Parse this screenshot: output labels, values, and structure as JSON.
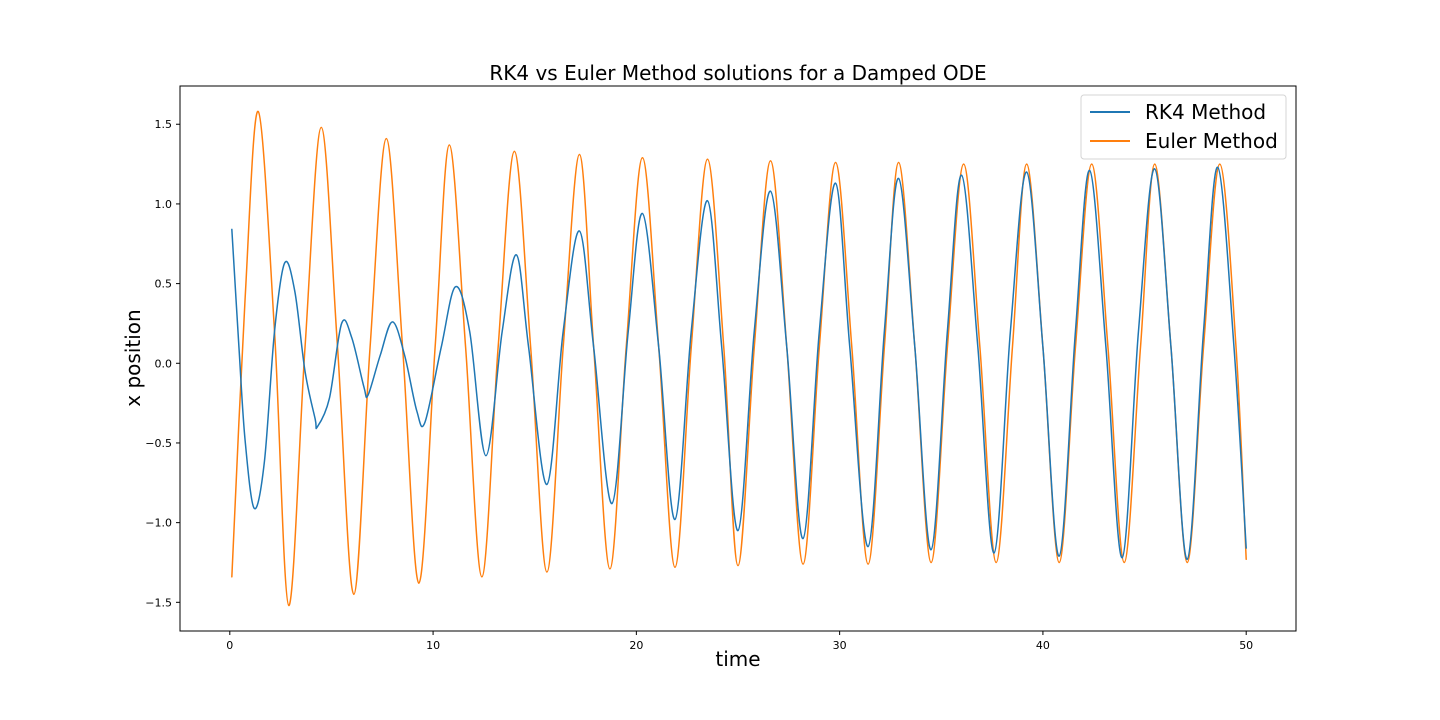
{
  "chart_data": {
    "type": "line",
    "title": "RK4 vs Euler Method solutions for a Damped ODE",
    "xlabel": "time",
    "ylabel": "x position",
    "xlim": [
      -2.45,
      52.45
    ],
    "ylim": [
      -1.68,
      1.74
    ],
    "xticks": [
      0,
      10,
      20,
      30,
      40,
      50
    ],
    "yticks": [
      -1.5,
      -1.0,
      -0.5,
      0.0,
      0.5,
      1.0,
      1.5
    ],
    "xtick_labels": [
      "0",
      "10",
      "20",
      "30",
      "40",
      "50"
    ],
    "ytick_labels": [
      "−1.5",
      "−1.0",
      "−0.5",
      "0.0",
      "0.5",
      "1.0",
      "1.5"
    ],
    "grid": false,
    "legend_position": "top-right",
    "series": [
      {
        "name": "RK4 Method",
        "color": "#1f77b4",
        "points": [
          [
            0.1,
            0.84
          ],
          [
            0.45,
            0.1
          ],
          [
            0.75,
            -0.48
          ],
          [
            1.2,
            -0.91
          ],
          [
            1.7,
            -0.62
          ],
          [
            2.2,
            0.2
          ],
          [
            2.7,
            0.63
          ],
          [
            3.2,
            0.45
          ],
          [
            3.7,
            -0.05
          ],
          [
            4.2,
            -0.35
          ],
          [
            4.3,
            -0.4
          ],
          [
            4.9,
            -0.22
          ],
          [
            5.5,
            0.25
          ],
          [
            6.0,
            0.16
          ],
          [
            6.6,
            -0.15
          ],
          [
            6.8,
            -0.2
          ],
          [
            7.4,
            0.05
          ],
          [
            8.0,
            0.26
          ],
          [
            8.6,
            0.05
          ],
          [
            9.2,
            -0.3
          ],
          [
            9.6,
            -0.37
          ],
          [
            10.4,
            0.1
          ],
          [
            11.1,
            0.48
          ],
          [
            11.8,
            0.2
          ],
          [
            12.6,
            -0.58
          ],
          [
            13.4,
            0.2
          ],
          [
            14.1,
            0.68
          ],
          [
            14.7,
            0.1
          ],
          [
            15.6,
            -0.76
          ],
          [
            16.4,
            0.2
          ],
          [
            17.2,
            0.83
          ],
          [
            17.9,
            0.1
          ],
          [
            18.8,
            -0.88
          ],
          [
            19.6,
            0.2
          ],
          [
            20.3,
            0.94
          ],
          [
            21.1,
            0.1
          ],
          [
            21.9,
            -0.98
          ],
          [
            22.7,
            0.2
          ],
          [
            23.5,
            1.02
          ],
          [
            24.2,
            0.1
          ],
          [
            25.0,
            -1.05
          ],
          [
            25.8,
            0.2
          ],
          [
            26.6,
            1.08
          ],
          [
            27.4,
            0.1
          ],
          [
            28.2,
            -1.1
          ],
          [
            29.0,
            0.2
          ],
          [
            29.8,
            1.13
          ],
          [
            30.5,
            0.1
          ],
          [
            31.4,
            -1.15
          ],
          [
            32.2,
            0.2
          ],
          [
            32.9,
            1.16
          ],
          [
            33.7,
            0.1
          ],
          [
            34.5,
            -1.17
          ],
          [
            35.3,
            0.2
          ],
          [
            36.0,
            1.18
          ],
          [
            36.8,
            0.1
          ],
          [
            37.6,
            -1.19
          ],
          [
            38.4,
            0.2
          ],
          [
            39.2,
            1.2
          ],
          [
            40.0,
            0.1
          ],
          [
            40.8,
            -1.21
          ],
          [
            41.6,
            0.2
          ],
          [
            42.3,
            1.21
          ],
          [
            43.1,
            0.1
          ],
          [
            43.9,
            -1.22
          ],
          [
            44.7,
            0.2
          ],
          [
            45.5,
            1.22
          ],
          [
            46.3,
            0.1
          ],
          [
            47.1,
            -1.23
          ],
          [
            47.9,
            0.2
          ],
          [
            48.6,
            1.23
          ],
          [
            49.4,
            0.1
          ],
          [
            50.0,
            -1.16
          ]
        ]
      },
      {
        "name": "Euler Method",
        "color": "#ff7f0e",
        "points": [
          [
            0.1,
            -1.34
          ],
          [
            0.75,
            0.4
          ],
          [
            1.4,
            1.58
          ],
          [
            2.2,
            0.2
          ],
          [
            2.9,
            -1.52
          ],
          [
            3.7,
            0.1
          ],
          [
            4.5,
            1.48
          ],
          [
            5.3,
            0.1
          ],
          [
            6.1,
            -1.45
          ],
          [
            6.9,
            0.1
          ],
          [
            7.7,
            1.41
          ],
          [
            8.5,
            0.1
          ],
          [
            9.3,
            -1.38
          ],
          [
            10.1,
            0.1
          ],
          [
            10.8,
            1.37
          ],
          [
            11.6,
            0.1
          ],
          [
            12.4,
            -1.34
          ],
          [
            13.2,
            0.1
          ],
          [
            14.0,
            1.33
          ],
          [
            14.8,
            0.1
          ],
          [
            15.6,
            -1.31
          ],
          [
            16.4,
            0.1
          ],
          [
            17.2,
            1.31
          ],
          [
            17.9,
            0.1
          ],
          [
            18.7,
            -1.29
          ],
          [
            19.5,
            0.1
          ],
          [
            20.3,
            1.29
          ],
          [
            21.1,
            0.1
          ],
          [
            21.9,
            -1.28
          ],
          [
            22.7,
            0.1
          ],
          [
            23.5,
            1.28
          ],
          [
            24.3,
            0.1
          ],
          [
            25.0,
            -1.27
          ],
          [
            25.8,
            0.1
          ],
          [
            26.6,
            1.27
          ],
          [
            27.4,
            0.1
          ],
          [
            28.2,
            -1.26
          ],
          [
            29.0,
            0.1
          ],
          [
            29.8,
            1.26
          ],
          [
            30.6,
            0.1
          ],
          [
            31.4,
            -1.26
          ],
          [
            32.2,
            0.1
          ],
          [
            32.9,
            1.26
          ],
          [
            33.7,
            0.1
          ],
          [
            34.5,
            -1.25
          ],
          [
            35.3,
            0.1
          ],
          [
            36.1,
            1.25
          ],
          [
            36.9,
            0.1
          ],
          [
            37.7,
            -1.25
          ],
          [
            38.5,
            0.1
          ],
          [
            39.2,
            1.25
          ],
          [
            40.0,
            0.1
          ],
          [
            40.8,
            -1.25
          ],
          [
            41.6,
            0.1
          ],
          [
            42.4,
            1.25
          ],
          [
            43.2,
            0.1
          ],
          [
            44.0,
            -1.25
          ],
          [
            44.8,
            0.1
          ],
          [
            45.5,
            1.25
          ],
          [
            46.3,
            0.1
          ],
          [
            47.1,
            -1.25
          ],
          [
            47.9,
            0.1
          ],
          [
            48.7,
            1.25
          ],
          [
            49.5,
            0.1
          ],
          [
            50.0,
            -1.23
          ]
        ]
      }
    ]
  }
}
